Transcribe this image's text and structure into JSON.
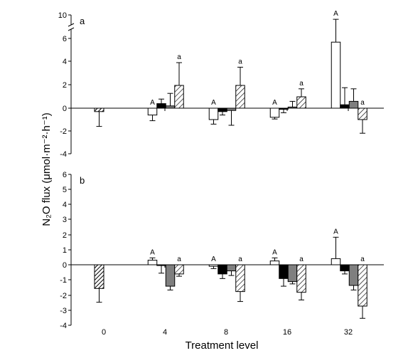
{
  "figure": {
    "ylabel": "N₂O flux (μmol·m⁻²·h⁻¹)",
    "xlabel": "Treatment level",
    "categories": [
      "0",
      "4",
      "8",
      "16",
      "32"
    ]
  },
  "chart_data": [
    {
      "type": "bar",
      "panel_label": "a",
      "categories": [
        "0",
        "4",
        "8",
        "16",
        "32"
      ],
      "ylim": [
        -4,
        10
      ],
      "axis_break": [
        6,
        10
      ],
      "yticks": [
        "-4",
        "-2",
        "0",
        "2",
        "4",
        "6",
        "10"
      ],
      "xlabel": "Treatment level",
      "ylabel": "N₂O flux (μmol·m⁻²·h⁻¹)",
      "series": [
        {
          "fill": "white",
          "values": [
            null,
            -0.6,
            -1.0,
            -0.8,
            5.8
          ],
          "errors": [
            null,
            0.5,
            0.4,
            0.15,
            3.5
          ]
        },
        {
          "fill": "black",
          "values": [
            null,
            0.4,
            -0.3,
            -0.1,
            0.3
          ],
          "errors": [
            null,
            0.4,
            0.3,
            0.3,
            1.5
          ]
        },
        {
          "fill": "gray",
          "values": [
            null,
            0.2,
            -0.2,
            0.1,
            0.6
          ],
          "errors": [
            null,
            1.1,
            1.3,
            0.5,
            1.1
          ]
        },
        {
          "fill": "hatch-light",
          "values": [
            null,
            2.0,
            2.0,
            1.0,
            -1.0
          ],
          "errors": [
            null,
            2.0,
            1.6,
            0.7,
            1.2
          ]
        },
        {
          "fill": "hatch-dense",
          "values": [
            -0.3,
            null,
            null,
            null,
            null
          ],
          "errors": [
            1.3,
            null,
            null,
            null,
            null
          ]
        }
      ],
      "annotations": [
        {
          "category": "4",
          "series": 0,
          "text": "A"
        },
        {
          "category": "8",
          "series": 0,
          "text": "A"
        },
        {
          "category": "16",
          "series": 0,
          "text": "A"
        },
        {
          "category": "32",
          "series": 0,
          "text": "A"
        },
        {
          "category": "4",
          "series": 3,
          "text": "a"
        },
        {
          "category": "8",
          "series": 3,
          "text": "a"
        },
        {
          "category": "16",
          "series": 3,
          "text": "a"
        },
        {
          "category": "32",
          "series": 3,
          "text": "a"
        }
      ]
    },
    {
      "type": "bar",
      "panel_label": "b",
      "categories": [
        "0",
        "4",
        "8",
        "16",
        "32"
      ],
      "ylim": [
        -4,
        6
      ],
      "yticks": [
        "-4",
        "-3",
        "-2",
        "-1",
        "0",
        "1",
        "2",
        "3",
        "4",
        "5",
        "6"
      ],
      "xlabel": "Treatment level",
      "ylabel": "N₂O flux (μmol·m⁻²·h⁻¹)",
      "series": [
        {
          "fill": "white",
          "values": [
            null,
            0.3,
            -0.1,
            0.25,
            0.4
          ],
          "errors": [
            null,
            0.15,
            0.15,
            0.2,
            1.4
          ]
        },
        {
          "fill": "black",
          "values": [
            null,
            -0.05,
            -0.6,
            -0.9,
            -0.4
          ],
          "errors": [
            null,
            0.5,
            0.3,
            0.5,
            0.2
          ]
        },
        {
          "fill": "gray",
          "values": [
            null,
            -1.4,
            -0.4,
            -1.1,
            -1.35
          ],
          "errors": [
            null,
            0.25,
            0.3,
            0.15,
            0.3
          ]
        },
        {
          "fill": "hatch-light",
          "values": [
            null,
            -0.6,
            -1.75,
            -1.8,
            -2.7
          ],
          "errors": [
            null,
            0.15,
            0.65,
            0.5,
            0.8
          ]
        },
        {
          "fill": "hatch-dense",
          "values": [
            -1.55,
            null,
            null,
            null,
            null
          ],
          "errors": [
            0.9,
            null,
            null,
            null,
            null
          ]
        }
      ],
      "annotations": [
        {
          "category": "4",
          "series": 0,
          "text": "A"
        },
        {
          "category": "8",
          "series": 0,
          "text": "A"
        },
        {
          "category": "16",
          "series": 0,
          "text": "A"
        },
        {
          "category": "32",
          "series": 0,
          "text": "A"
        },
        {
          "category": "4",
          "series": 3,
          "text": "a"
        },
        {
          "category": "8",
          "series": 3,
          "text": "a"
        },
        {
          "category": "16",
          "series": 3,
          "text": "a"
        },
        {
          "category": "32",
          "series": 3,
          "text": "a"
        }
      ]
    }
  ]
}
